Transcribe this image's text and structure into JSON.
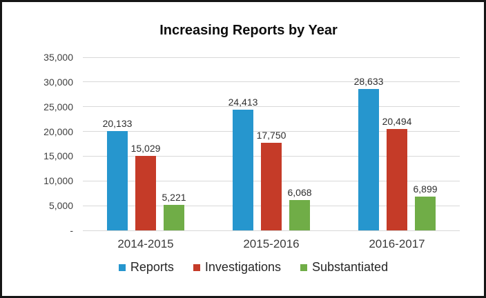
{
  "chart_data": {
    "type": "bar",
    "title": "Increasing Reports by Year",
    "categories": [
      "2014-2015",
      "2015-2016",
      "2016-2017"
    ],
    "series": [
      {
        "name": "Reports",
        "color": "#2696ce",
        "values": [
          20133,
          24413,
          28633
        ],
        "labels": [
          "20,133",
          "24,413",
          "28,633"
        ]
      },
      {
        "name": "Investigations",
        "color": "#c53b28",
        "values": [
          15029,
          17750,
          20494
        ],
        "labels": [
          "15,029",
          "17,750",
          "20,494"
        ]
      },
      {
        "name": "Substantiated",
        "color": "#70ad47",
        "values": [
          5221,
          6068,
          6899
        ],
        "labels": [
          "5,221",
          "6,068",
          "6,899"
        ]
      }
    ],
    "y_axis": {
      "min": 0,
      "max": 35000,
      "step": 5000,
      "ticks": [
        "35,000",
        "30,000",
        "25,000",
        "20,000",
        "15,000",
        "10,000",
        "5,000",
        "-"
      ],
      "tick_values": [
        35000,
        30000,
        25000,
        20000,
        15000,
        10000,
        5000,
        0
      ]
    },
    "grid": true,
    "legend_position": "bottom",
    "colors": {
      "gridline": "#d8d8d8",
      "axis_text": "#404040",
      "title_text": "#0d0d0d",
      "frame_border": "#161616"
    }
  }
}
